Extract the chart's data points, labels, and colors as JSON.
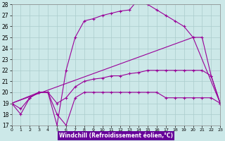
{
  "xlabel": "Windchill (Refroidissement éolien,°C)",
  "xlim": [
    0,
    23
  ],
  "ylim": [
    17,
    28
  ],
  "xticks": [
    0,
    1,
    2,
    3,
    4,
    5,
    6,
    7,
    8,
    9,
    10,
    11,
    12,
    13,
    14,
    15,
    16,
    17,
    18,
    19,
    20,
    21,
    22,
    23
  ],
  "yticks": [
    17,
    18,
    19,
    20,
    21,
    22,
    23,
    24,
    25,
    26,
    27,
    28
  ],
  "bg_color": "#cce8e8",
  "line_color": "#990099",
  "grid_color": "#aacccc",
  "xlabel_bg": "#660099",
  "lines": [
    {
      "x": [
        0,
        1,
        2,
        3,
        4,
        5,
        6,
        7,
        8,
        9,
        10,
        11,
        12,
        13,
        14,
        15,
        16,
        17,
        18,
        19,
        20,
        21,
        22,
        23
      ],
      "y": [
        19,
        18,
        19.5,
        20,
        20,
        18,
        17,
        19.5,
        20,
        20,
        20,
        20,
        20,
        20,
        20,
        20,
        20,
        19.5,
        19.5,
        19.5,
        19.5,
        19.5,
        19.5,
        19
      ]
    },
    {
      "x": [
        0,
        1,
        2,
        3,
        4,
        5,
        6,
        7,
        8,
        9,
        10,
        11,
        12,
        13,
        14,
        15,
        16,
        17,
        18,
        19,
        20,
        21,
        22,
        23
      ],
      "y": [
        19,
        18.5,
        19.5,
        20,
        20,
        19,
        19.5,
        20.5,
        21,
        21.2,
        21.3,
        21.5,
        21.5,
        21.7,
        21.8,
        22,
        22,
        22,
        22,
        22,
        22,
        22,
        21.5,
        19
      ]
    },
    {
      "x": [
        0,
        3,
        4,
        5,
        6,
        7,
        8,
        9,
        10,
        11,
        12,
        13,
        14,
        15,
        16,
        17,
        18,
        19,
        20,
        21,
        22,
        23
      ],
      "y": [
        19,
        20,
        20,
        17,
        22,
        25,
        26.5,
        26.7,
        27,
        27.2,
        27.4,
        27.5,
        28.5,
        28,
        27.5,
        27,
        26.5,
        26,
        25,
        25,
        21.5,
        19
      ]
    },
    {
      "x": [
        0,
        20,
        23
      ],
      "y": [
        19,
        25,
        19
      ]
    }
  ]
}
